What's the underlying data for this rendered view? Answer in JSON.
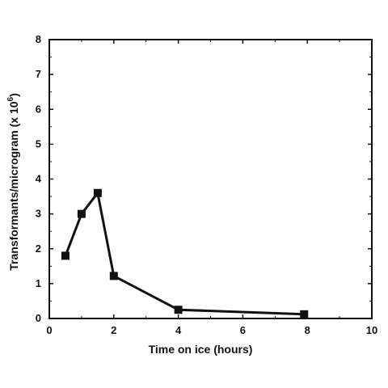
{
  "chart_data": {
    "type": "line",
    "title": "",
    "xlabel": "Time on ice (hours)",
    "ylabel_text": "Transformants/microgram (x 10",
    "ylabel_exp": "6",
    "ylabel_close": ")",
    "xlim": [
      0,
      10
    ],
    "ylim": [
      0,
      8
    ],
    "xticks": [
      0,
      2,
      4,
      6,
      8,
      10
    ],
    "yticks": [
      0,
      1,
      2,
      3,
      4,
      5,
      6,
      7,
      8
    ],
    "grid": false,
    "marker": "square",
    "line_color": "#111111",
    "series": [
      {
        "x": [
          0.5,
          1.0,
          1.5,
          2.0,
          4.0,
          7.9
        ],
        "y": [
          1.8,
          3.0,
          3.6,
          1.22,
          0.25,
          0.12
        ]
      }
    ]
  }
}
